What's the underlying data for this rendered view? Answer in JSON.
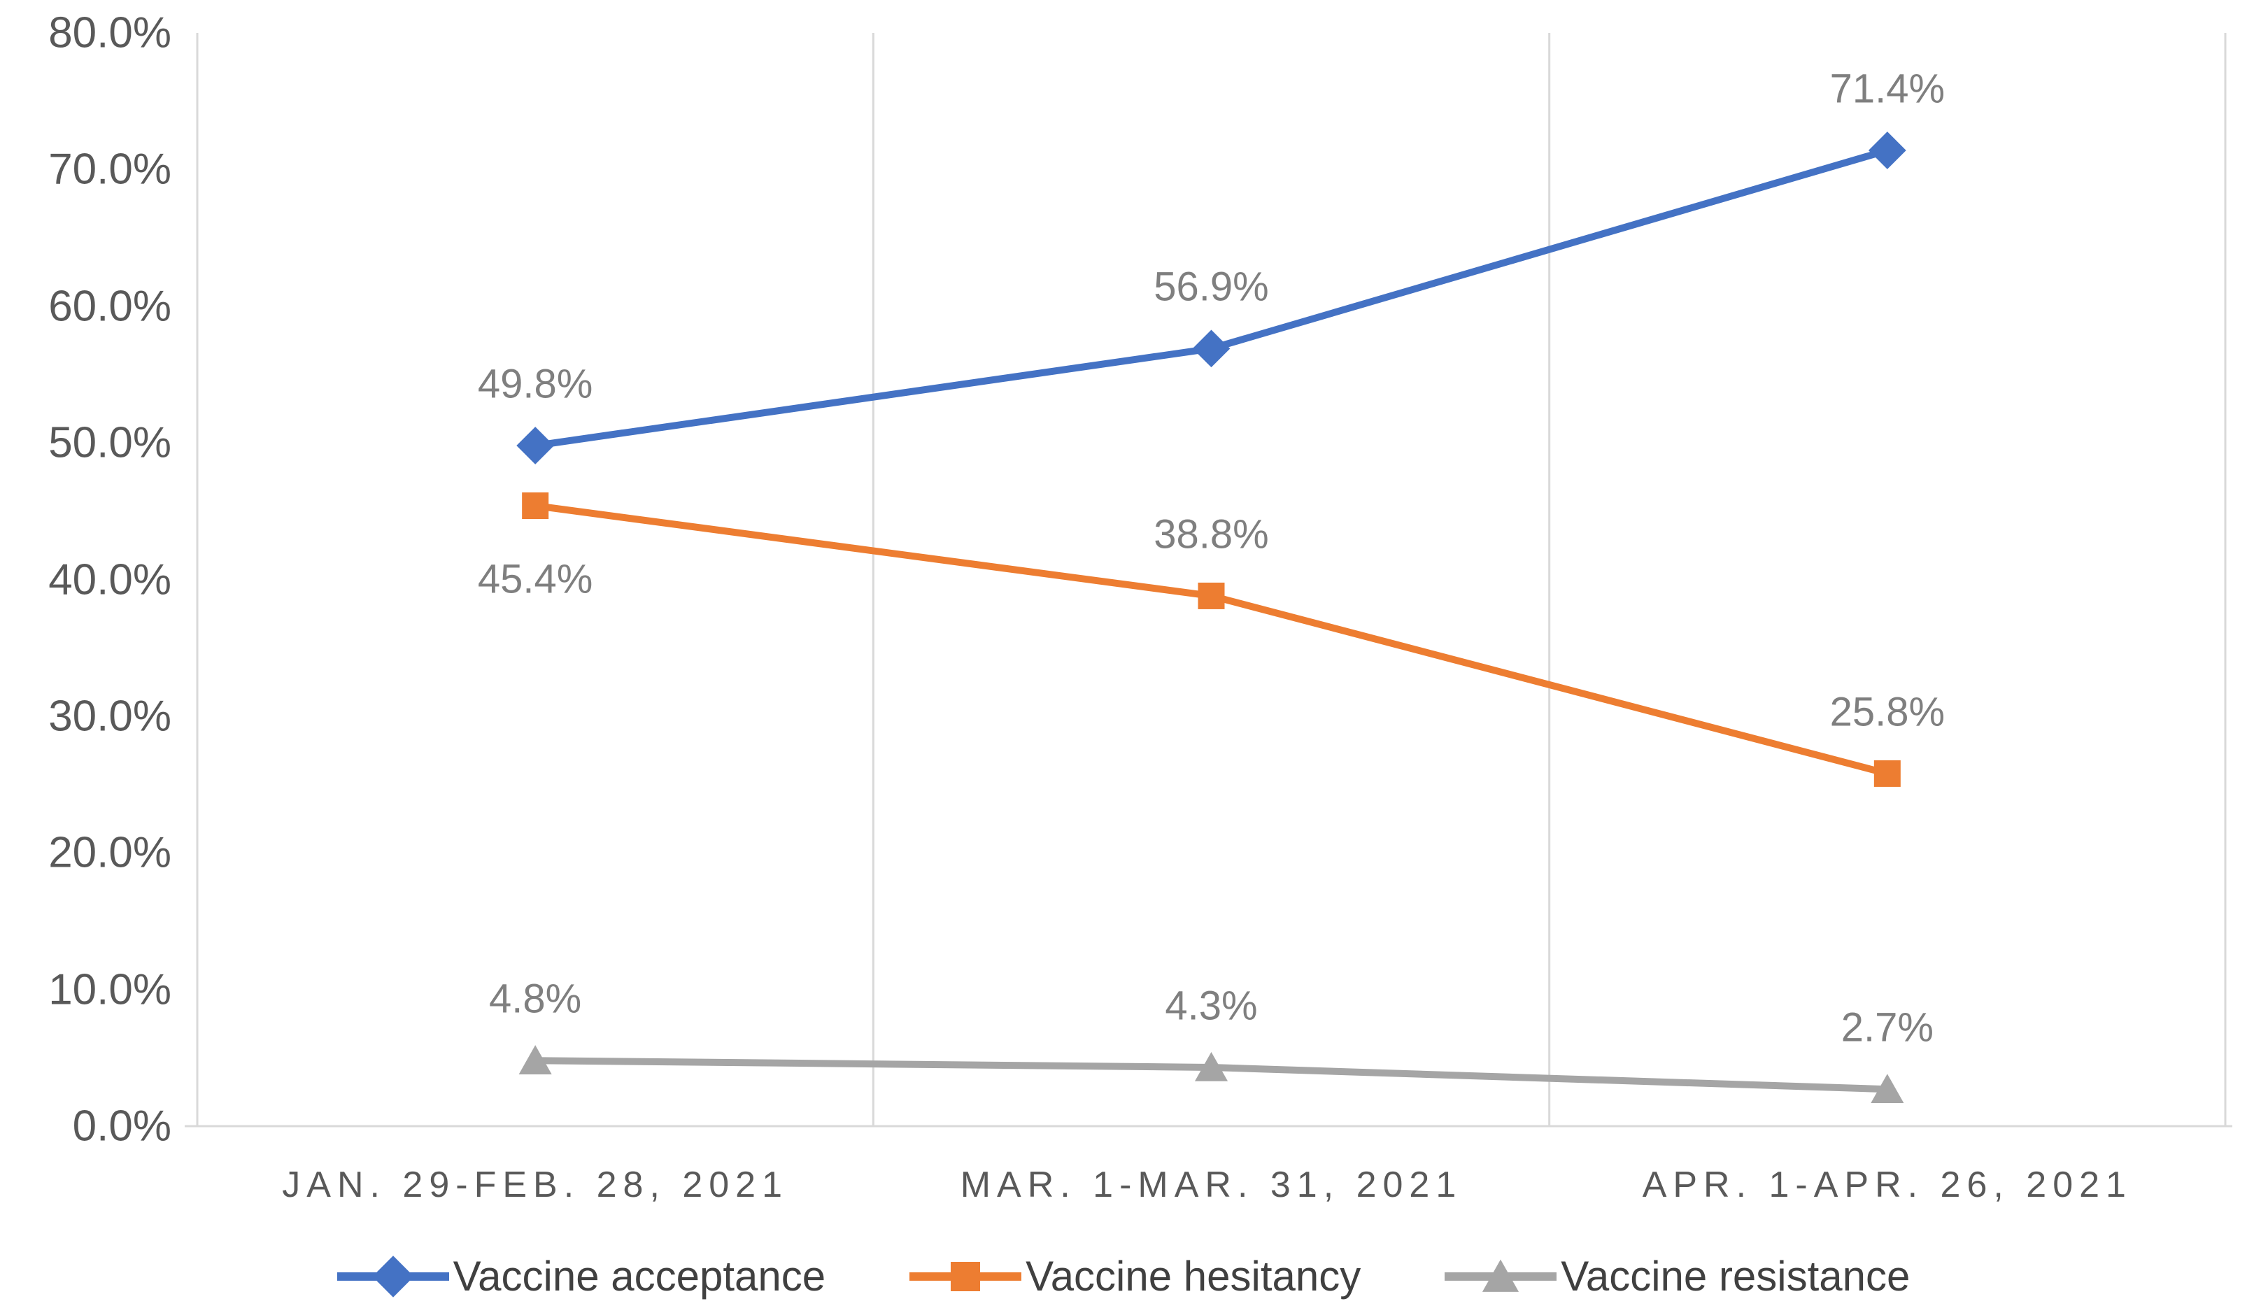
{
  "chart_data": {
    "type": "line",
    "title": "",
    "xlabel": "",
    "ylabel": "",
    "categories": [
      "JAN. 29-FEB. 28, 2021",
      "MAR. 1-MAR. 31, 2021",
      "APR. 1-APR. 26, 2021"
    ],
    "series": [
      {
        "name": "Vaccine acceptance",
        "values": [
          49.8,
          56.9,
          71.4
        ],
        "labels": [
          "49.8%",
          "56.9%",
          "71.4%"
        ],
        "label_placement": [
          "above",
          "above",
          "above"
        ],
        "color": "#4472C4",
        "marker": "diamond"
      },
      {
        "name": "Vaccine hesitancy",
        "values": [
          45.4,
          38.8,
          25.8
        ],
        "labels": [
          "45.4%",
          "38.8%",
          "25.8%"
        ],
        "label_placement": [
          "below",
          "above",
          "above"
        ],
        "color": "#ED7D31",
        "marker": "square"
      },
      {
        "name": "Vaccine resistance",
        "values": [
          4.8,
          4.3,
          2.7
        ],
        "labels": [
          "4.8%",
          "4.3%",
          "2.7%"
        ],
        "label_placement": [
          "above",
          "above",
          "above"
        ],
        "color": "#A5A5A5",
        "marker": "triangle"
      }
    ],
    "y_ticks": [
      "0.0%",
      "10.0%",
      "20.0%",
      "30.0%",
      "40.0%",
      "50.0%",
      "60.0%",
      "70.0%",
      "80.0%"
    ],
    "ylim": [
      0,
      80
    ],
    "grid": "vertical category separators only",
    "legend_position": "bottom-center",
    "colors": {
      "background": "#FFFFFF",
      "gridline": "#D9D9D9",
      "axis_line": "#D9D9D9",
      "tick_label_text": "#595959",
      "category_label_text": "#595959",
      "data_label_text": "#7F7F7F",
      "legend_text": "#404040"
    }
  }
}
